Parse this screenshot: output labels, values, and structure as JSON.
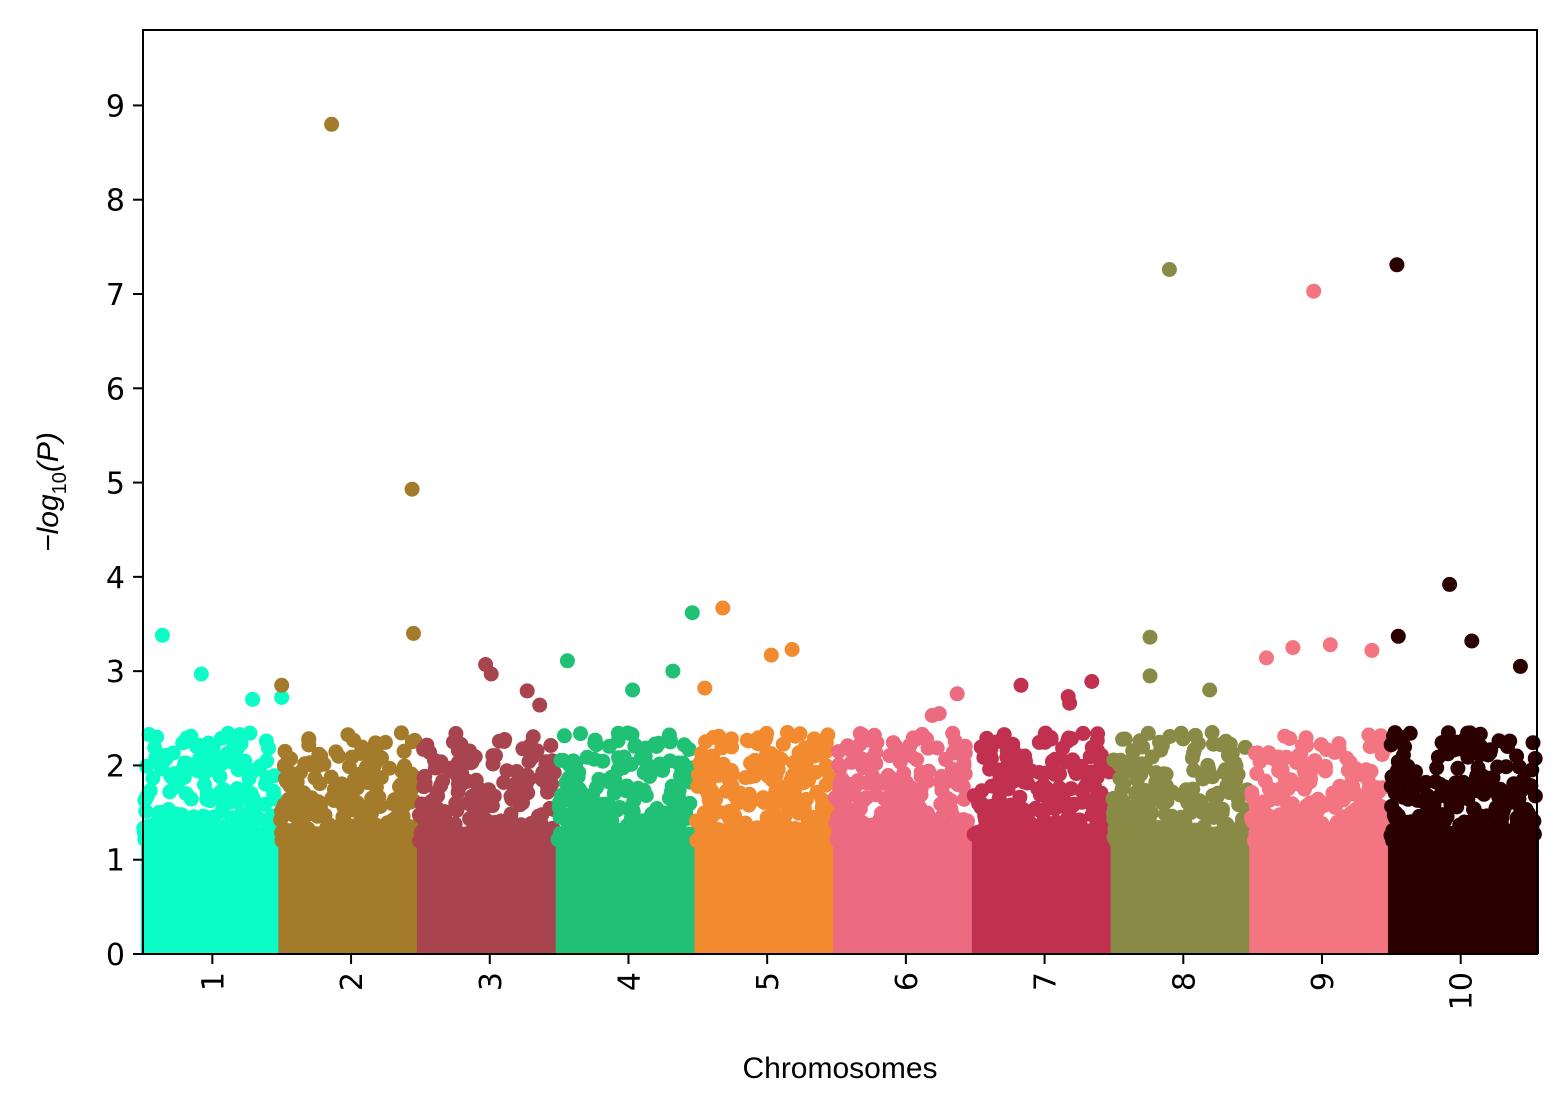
{
  "chart_data": {
    "type": "scatter",
    "subtype": "manhattan",
    "title": "",
    "xlabel": "Chromosomes",
    "ylabel": "-log10(P)",
    "ylabel_parts": {
      "prefix": "−log",
      "sub": "10",
      "suffix": "(P)"
    },
    "ylim": [
      0,
      9.8
    ],
    "yticks": [
      "0",
      "1",
      "2",
      "3",
      "4",
      "5",
      "6",
      "7",
      "8",
      "9"
    ],
    "xlim": [
      0.5,
      10.55
    ],
    "grid": false,
    "legend": "none",
    "chromosomes": [
      {
        "label": "1",
        "color": "#0AFDC6",
        "top_hits": [
          [
            0.64,
            3.38
          ],
          [
            0.92,
            2.97
          ],
          [
            1.29,
            2.7
          ],
          [
            1.5,
            2.72
          ]
        ]
      },
      {
        "label": "2",
        "color": "#A37B2A",
        "top_hits": [
          [
            1.86,
            8.8
          ],
          [
            2.44,
            4.93
          ],
          [
            2.45,
            3.4
          ],
          [
            1.5,
            2.85
          ]
        ]
      },
      {
        "label": "3",
        "color": "#A8444E",
        "top_hits": [
          [
            2.97,
            3.07
          ],
          [
            3.01,
            2.97
          ],
          [
            3.27,
            2.79
          ],
          [
            3.36,
            2.64
          ]
        ]
      },
      {
        "label": "4",
        "color": "#20C075",
        "top_hits": [
          [
            4.46,
            3.62
          ],
          [
            3.56,
            3.11
          ],
          [
            4.32,
            3.0
          ],
          [
            4.03,
            2.8
          ]
        ]
      },
      {
        "label": "5",
        "color": "#F28A2F",
        "top_hits": [
          [
            4.68,
            3.67
          ],
          [
            5.18,
            3.23
          ],
          [
            5.03,
            3.17
          ],
          [
            4.55,
            2.82
          ]
        ]
      },
      {
        "label": "6",
        "color": "#EC6B80",
        "top_hits": [
          [
            6.37,
            2.76
          ],
          [
            6.24,
            2.55
          ],
          [
            6.19,
            2.53
          ]
        ]
      },
      {
        "label": "7",
        "color": "#C1304E",
        "top_hits": [
          [
            7.34,
            2.89
          ],
          [
            6.83,
            2.85
          ],
          [
            7.17,
            2.73
          ],
          [
            7.18,
            2.66
          ]
        ]
      },
      {
        "label": "8",
        "color": "#8A8A47",
        "top_hits": [
          [
            7.9,
            7.26
          ],
          [
            7.76,
            3.36
          ],
          [
            7.76,
            2.95
          ],
          [
            8.19,
            2.8
          ]
        ]
      },
      {
        "label": "9",
        "color": "#F47582",
        "top_hits": [
          [
            8.94,
            7.03
          ],
          [
            9.06,
            3.28
          ],
          [
            8.79,
            3.25
          ],
          [
            9.36,
            3.22
          ],
          [
            8.6,
            3.14
          ]
        ]
      },
      {
        "label": "10",
        "color": "#2A0000",
        "top_hits": [
          [
            9.54,
            7.31
          ],
          [
            9.92,
            3.92
          ],
          [
            9.55,
            3.37
          ],
          [
            10.08,
            3.32
          ],
          [
            10.43,
            3.05
          ]
        ]
      }
    ]
  }
}
